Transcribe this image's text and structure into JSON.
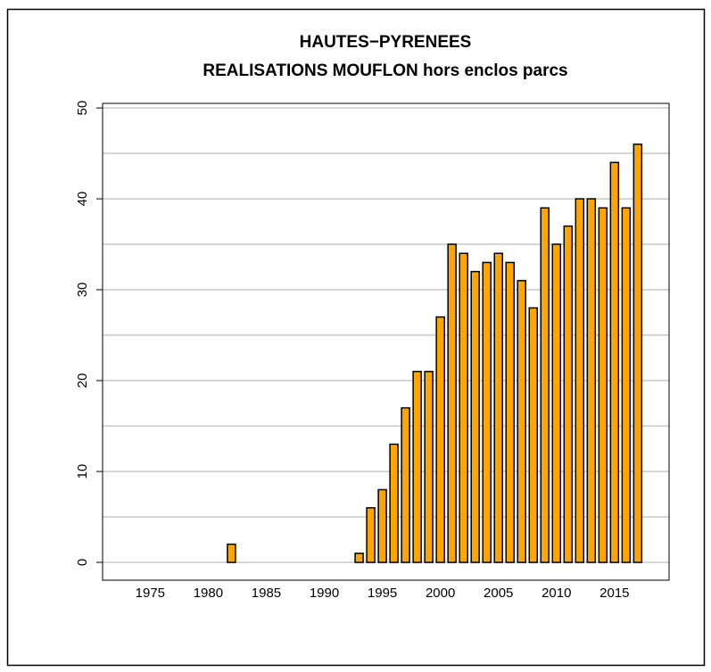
{
  "chart_data": {
    "type": "bar",
    "title": "HAUTES−PYRENEES",
    "subtitle": "REALISATIONS MOUFLON hors enclos parcs",
    "x": [
      1973,
      1974,
      1975,
      1976,
      1977,
      1978,
      1979,
      1980,
      1981,
      1982,
      1983,
      1984,
      1985,
      1986,
      1987,
      1988,
      1989,
      1990,
      1991,
      1992,
      1993,
      1994,
      1995,
      1996,
      1997,
      1998,
      1999,
      2000,
      2001,
      2002,
      2003,
      2004,
      2005,
      2006,
      2007,
      2008,
      2009,
      2010,
      2011,
      2012,
      2013,
      2014,
      2015,
      2016,
      2017
    ],
    "values": [
      0,
      0,
      0,
      0,
      0,
      0,
      0,
      0,
      0,
      2,
      0,
      0,
      0,
      0,
      0,
      0,
      0,
      0,
      0,
      0,
      1,
      6,
      8,
      13,
      17,
      21,
      21,
      27,
      35,
      34,
      32,
      33,
      34,
      33,
      31,
      28,
      39,
      35,
      37,
      40,
      40,
      39,
      44,
      39,
      46
    ],
    "color": "#ffa500",
    "xlim": [
      1970.9,
      2019.7
    ],
    "xticks": [
      1975,
      1980,
      1985,
      1990,
      1995,
      2000,
      2005,
      2010,
      2015
    ],
    "ylim": [
      -1.96,
      50.5
    ],
    "yticks": [
      0,
      10,
      20,
      30,
      40,
      50
    ],
    "ygrid": [
      0,
      5,
      10,
      15,
      20,
      25,
      30,
      35,
      40,
      45,
      50
    ],
    "grid": true
  }
}
